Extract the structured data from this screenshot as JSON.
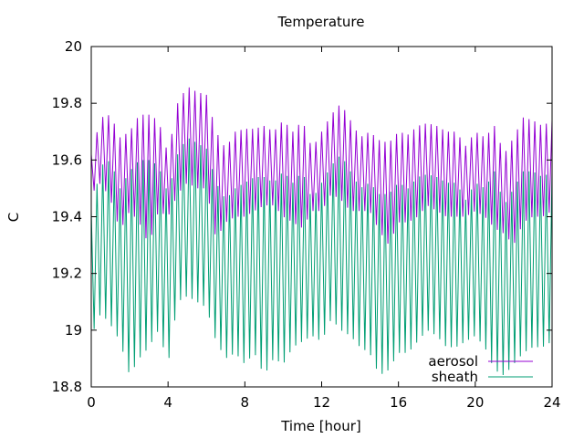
{
  "chart_data": {
    "type": "line",
    "title": "Temperature",
    "xlabel": "Time [hour]",
    "ylabel": "C",
    "xlim": [
      0,
      24
    ],
    "ylim": [
      18.8,
      20
    ],
    "x_ticks": [
      0,
      4,
      8,
      12,
      16,
      20,
      24
    ],
    "x_tick_labels": [
      "0",
      "4",
      "8",
      "12",
      "16",
      "20",
      "24"
    ],
    "y_ticks": [
      18.8,
      19,
      19.2,
      19.4,
      19.6,
      19.8,
      20
    ],
    "y_tick_labels": [
      "18.8",
      "19",
      "19.2",
      "19.4",
      "19.6",
      "19.8",
      "20"
    ],
    "grid": false,
    "legend_position": "bottom-right",
    "oscillation_period_hours": 0.3,
    "series": [
      {
        "name": "aerosol",
        "color": "#9400d3",
        "x": [
          0,
          0.5,
          1,
          1.5,
          2,
          2.5,
          3,
          3.5,
          4,
          4.5,
          5,
          5.5,
          6,
          6.5,
          7,
          7.5,
          8,
          8.5,
          9,
          9.5,
          10,
          10.5,
          11,
          11.5,
          12,
          12.5,
          13,
          13.5,
          14,
          14.5,
          15,
          15.5,
          16,
          16.5,
          17,
          17.5,
          18,
          18.5,
          19,
          19.5,
          20,
          20.5,
          21,
          21.5,
          22,
          22.5,
          23,
          23.5,
          24
        ],
        "upper": [
          19.62,
          19.75,
          19.76,
          19.68,
          19.7,
          19.76,
          19.76,
          19.74,
          19.62,
          19.8,
          19.86,
          19.84,
          19.83,
          19.7,
          19.64,
          19.7,
          19.71,
          19.71,
          19.72,
          19.7,
          19.74,
          19.7,
          19.74,
          19.64,
          19.7,
          19.76,
          19.8,
          19.74,
          19.68,
          19.7,
          19.67,
          19.66,
          19.7,
          19.69,
          19.72,
          19.73,
          19.72,
          19.7,
          19.7,
          19.65,
          19.7,
          19.68,
          19.72,
          19.62,
          19.68,
          19.75,
          19.74,
          19.72,
          19.74
        ],
        "lower": [
          19.48,
          19.52,
          19.46,
          19.35,
          19.42,
          19.38,
          19.3,
          19.42,
          19.4,
          19.48,
          19.52,
          19.5,
          19.5,
          19.32,
          19.38,
          19.4,
          19.4,
          19.42,
          19.44,
          19.44,
          19.4,
          19.38,
          19.36,
          19.42,
          19.42,
          19.48,
          19.46,
          19.42,
          19.42,
          19.42,
          19.35,
          19.3,
          19.38,
          19.38,
          19.4,
          19.44,
          19.42,
          19.4,
          19.4,
          19.4,
          19.42,
          19.4,
          19.36,
          19.34,
          19.3,
          19.38,
          19.4,
          19.4,
          19.42
        ]
      },
      {
        "name": "sheath",
        "color": "#009e73",
        "x": [
          0,
          0.5,
          1,
          1.5,
          2,
          2.5,
          3,
          3.5,
          4,
          4.5,
          5,
          5.5,
          6,
          6.5,
          7,
          7.5,
          8,
          8.5,
          9,
          9.5,
          10,
          10.5,
          11,
          11.5,
          12,
          12.5,
          13,
          13.5,
          14,
          14.5,
          15,
          15.5,
          16,
          16.5,
          17,
          17.5,
          18,
          18.5,
          19,
          19.5,
          20,
          20.5,
          21,
          21.5,
          22,
          22.5,
          23,
          23.5,
          24
        ],
        "upper": [
          19.42,
          19.58,
          19.6,
          19.5,
          19.56,
          19.6,
          19.6,
          19.58,
          19.48,
          19.62,
          19.68,
          19.66,
          19.64,
          19.52,
          19.46,
          19.5,
          19.52,
          19.54,
          19.54,
          19.52,
          19.56,
          19.52,
          19.56,
          19.46,
          19.52,
          19.58,
          19.62,
          19.56,
          19.5,
          19.52,
          19.48,
          19.48,
          19.52,
          19.5,
          19.54,
          19.55,
          19.54,
          19.52,
          19.52,
          19.46,
          19.52,
          19.5,
          19.56,
          19.44,
          19.5,
          19.56,
          19.56,
          19.54,
          19.56
        ],
        "lower": [
          18.98,
          19.06,
          19.02,
          18.96,
          18.84,
          18.9,
          18.94,
          19.0,
          18.88,
          19.1,
          19.12,
          19.1,
          19.08,
          18.96,
          18.9,
          18.92,
          18.88,
          18.92,
          18.84,
          18.9,
          18.88,
          18.94,
          18.96,
          18.98,
          18.96,
          19.04,
          19.0,
          18.98,
          18.94,
          18.92,
          18.84,
          18.86,
          18.92,
          18.92,
          18.96,
          19.0,
          18.98,
          18.94,
          18.94,
          18.96,
          18.98,
          18.94,
          18.86,
          18.84,
          18.88,
          18.92,
          18.94,
          18.94,
          18.96
        ]
      }
    ]
  }
}
